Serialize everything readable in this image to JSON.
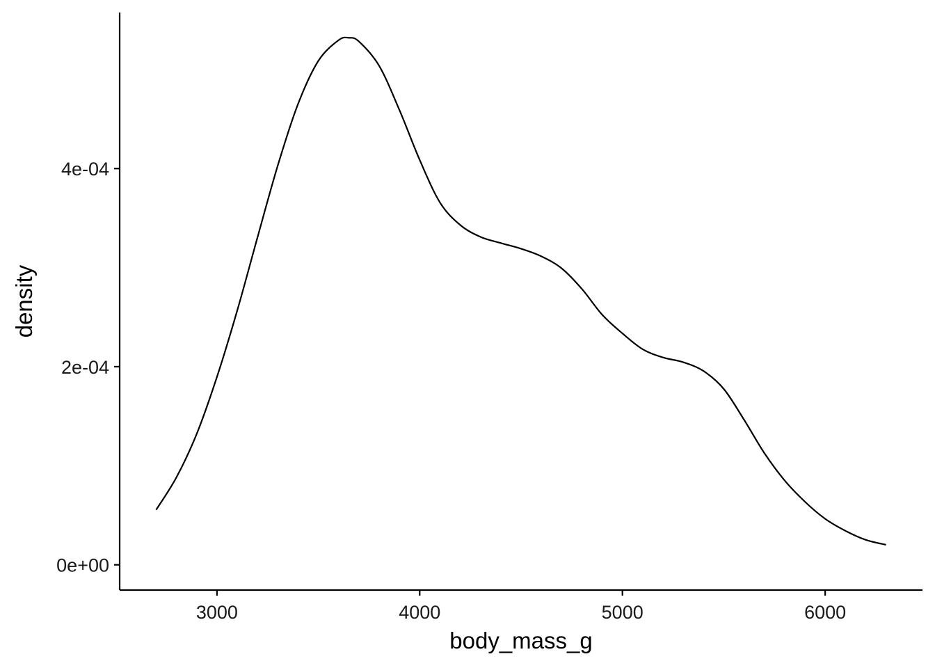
{
  "chart_data": {
    "type": "line",
    "title": "",
    "xlabel": "body_mass_g",
    "ylabel": "density",
    "xlim": [
      2520,
      6480
    ],
    "ylim": [
      -2.55e-05,
      0.0005575
    ],
    "x_ticks": [
      3000,
      4000,
      5000,
      6000
    ],
    "x_tick_labels": [
      "3000",
      "4000",
      "5000",
      "6000"
    ],
    "y_ticks": [
      0,
      0.0002,
      0.0004
    ],
    "y_tick_labels": [
      "0e+00",
      "2e-04",
      "4e-04"
    ],
    "grid": false,
    "legend": "none",
    "series": [
      {
        "color": "#000000",
        "x": [
          2700,
          2800,
          2900,
          3000,
          3100,
          3200,
          3300,
          3400,
          3500,
          3600,
          3650,
          3700,
          3800,
          3900,
          4000,
          4100,
          4200,
          4300,
          4400,
          4500,
          4600,
          4700,
          4800,
          4900,
          5000,
          5100,
          5200,
          5300,
          5400,
          5500,
          5600,
          5700,
          5800,
          5900,
          6000,
          6100,
          6200,
          6300
        ],
        "y": [
          5.55e-05,
          8.83e-05,
          0.0001321,
          0.0001897,
          0.0002567,
          0.0003306,
          0.0004031,
          0.0004652,
          0.0005087,
          0.0005296,
          0.000532,
          0.0005283,
          0.0005037,
          0.0004591,
          0.0004087,
          0.0003657,
          0.000343,
          0.000331,
          0.0003248,
          0.0003191,
          0.0003114,
          0.0002993,
          0.0002785,
          0.0002525,
          0.0002336,
          0.0002176,
          0.0002093,
          0.0002045,
          0.0001956,
          0.0001775,
          0.0001464,
          0.0001128,
          8.52e-05,
          6.37e-05,
          4.64e-05,
          3.43e-05,
          2.52e-05,
          2.02e-05
        ]
      }
    ]
  }
}
